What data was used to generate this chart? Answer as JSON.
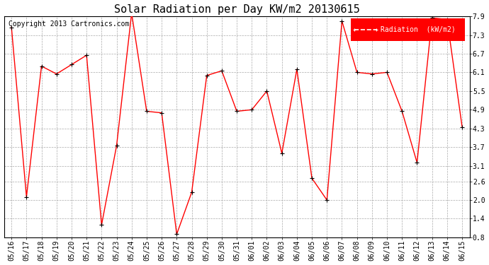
{
  "title": "Solar Radiation per Day KW/m2 20130615",
  "copyright": "Copyright 2013 Cartronics.com",
  "legend_label": "Radiation  (kW/m2)",
  "dates": [
    "05/16",
    "05/17",
    "05/18",
    "05/19",
    "05/20",
    "05/21",
    "05/22",
    "05/23",
    "05/24",
    "05/25",
    "05/26",
    "05/27",
    "05/28",
    "05/29",
    "05/30",
    "05/31",
    "06/01",
    "06/02",
    "06/03",
    "06/04",
    "06/05",
    "06/06",
    "06/07",
    "06/08",
    "06/09",
    "06/10",
    "06/11",
    "06/12",
    "06/13",
    "06/14",
    "06/15"
  ],
  "values": [
    7.55,
    2.1,
    6.3,
    6.05,
    6.35,
    6.65,
    1.2,
    3.75,
    8.0,
    4.85,
    4.8,
    0.9,
    2.25,
    6.0,
    6.15,
    4.85,
    4.9,
    5.5,
    3.5,
    6.2,
    2.7,
    2.0,
    7.75,
    6.1,
    6.05,
    6.1,
    4.85,
    3.2,
    7.85,
    7.8,
    4.35
  ],
  "yticks": [
    0.8,
    1.4,
    2.0,
    2.6,
    3.1,
    3.7,
    4.3,
    4.9,
    5.5,
    6.1,
    6.7,
    7.3,
    7.9
  ],
  "ymin": 0.8,
  "ymax": 7.9,
  "line_color": "red",
  "marker_color": "black",
  "bg_color": "#ffffff",
  "grid_color": "#aaaaaa",
  "legend_bg": "red",
  "legend_text_color": "white",
  "title_fontsize": 11,
  "copyright_fontsize": 7,
  "tick_fontsize": 7,
  "legend_fontsize": 7
}
